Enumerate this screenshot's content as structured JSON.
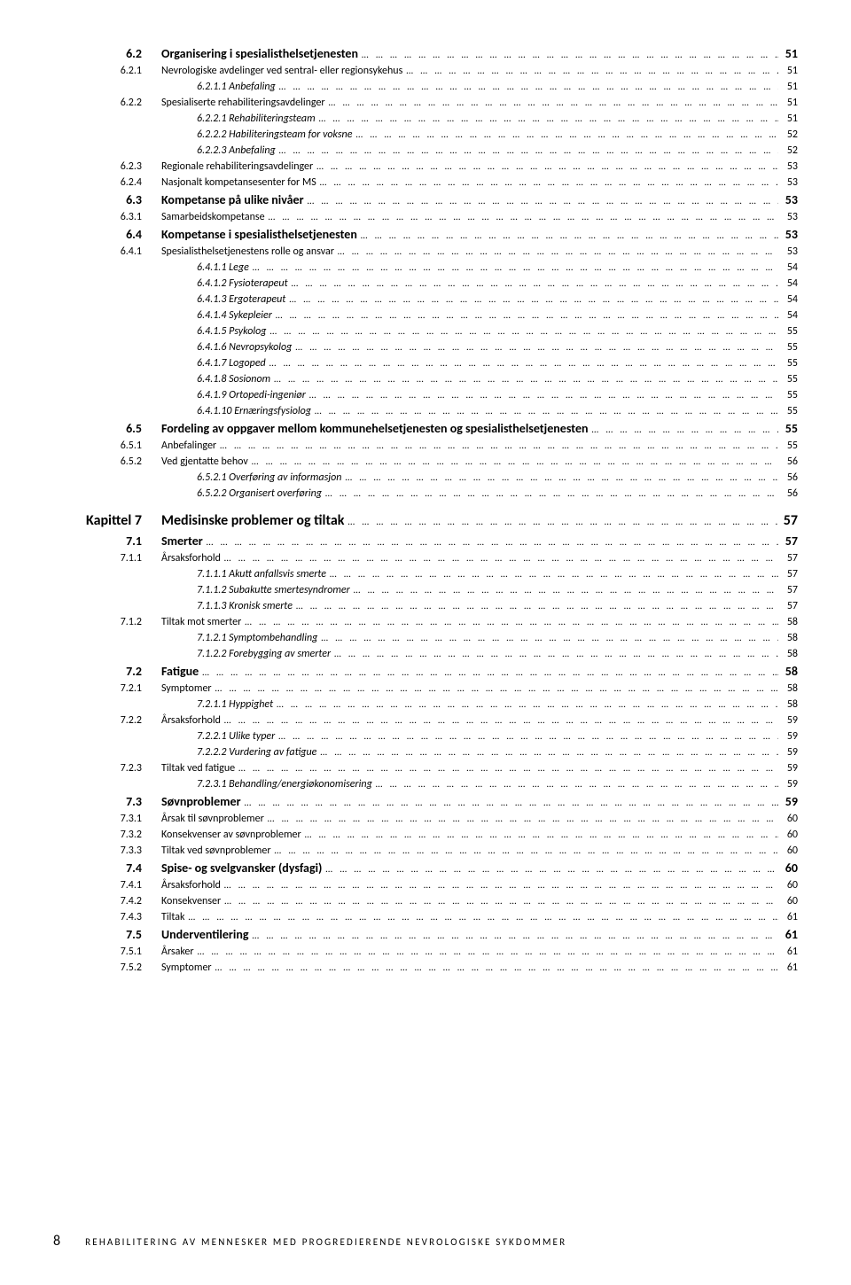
{
  "toc": [
    {
      "lvl": "section",
      "num": "6.2",
      "label": "Organisering i spesialisthelsetjenesten",
      "page": "51",
      "bold": true
    },
    {
      "lvl": "sub",
      "indent": 1,
      "num": "6.2.1",
      "label": "Nevrologiske avdelinger ved sentral- eller regionsykehus",
      "page": "51"
    },
    {
      "lvl": "subsub",
      "indent": 2,
      "num": "",
      "label": "6.2.1.1 Anbefaling",
      "page": "51"
    },
    {
      "lvl": "sub",
      "indent": 1,
      "num": "6.2.2",
      "label": "Spesialiserte rehabiliteringsavdelinger",
      "page": "51"
    },
    {
      "lvl": "subsub",
      "indent": 2,
      "num": "",
      "label": "6.2.2.1 Rehabiliteringsteam",
      "page": "51"
    },
    {
      "lvl": "subsub",
      "indent": 2,
      "num": "",
      "label": "6.2.2.2 Habiliteringsteam for voksne",
      "page": "52"
    },
    {
      "lvl": "subsub",
      "indent": 2,
      "num": "",
      "label": "6.2.2.3 Anbefaling",
      "page": "52"
    },
    {
      "lvl": "sub",
      "indent": 1,
      "num": "6.2.3",
      "label": "Regionale rehabiliteringsavdelinger",
      "page": "53"
    },
    {
      "lvl": "sub",
      "indent": 1,
      "num": "6.2.4",
      "label": "Nasjonalt kompetansesenter for MS",
      "page": "53"
    },
    {
      "lvl": "section",
      "num": "6.3",
      "label": "Kompetanse på ulike nivåer",
      "page": "53",
      "bold": true
    },
    {
      "lvl": "sub",
      "indent": 1,
      "num": "6.3.1",
      "label": "Samarbeidskompetanse",
      "page": "53"
    },
    {
      "lvl": "section",
      "num": "6.4",
      "label": "Kompetanse i spesialisthelsetjenesten",
      "page": "53",
      "bold": true
    },
    {
      "lvl": "sub",
      "indent": 1,
      "num": "6.4.1",
      "label": "Spesialisthelsetjenestens rolle og ansvar",
      "page": "53"
    },
    {
      "lvl": "subsub",
      "indent": 2,
      "num": "",
      "label": "6.4.1.1 Lege",
      "page": "54"
    },
    {
      "lvl": "subsub",
      "indent": 2,
      "num": "",
      "label": "6.4.1.2 Fysioterapeut",
      "page": "54"
    },
    {
      "lvl": "subsub",
      "indent": 2,
      "num": "",
      "label": "6.4.1.3 Ergoterapeut",
      "page": "54"
    },
    {
      "lvl": "subsub",
      "indent": 2,
      "num": "",
      "label": "6.4.1.4 Sykepleier",
      "page": "54"
    },
    {
      "lvl": "subsub",
      "indent": 2,
      "num": "",
      "label": "6.4.1.5 Psykolog",
      "page": "55"
    },
    {
      "lvl": "subsub",
      "indent": 2,
      "num": "",
      "label": "6.4.1.6 Nevropsykolog",
      "page": "55"
    },
    {
      "lvl": "subsub",
      "indent": 2,
      "num": "",
      "label": "6.4.1.7 Logoped",
      "page": "55"
    },
    {
      "lvl": "subsub",
      "indent": 2,
      "num": "",
      "label": "6.4.1.8 Sosionom",
      "page": "55"
    },
    {
      "lvl": "subsub",
      "indent": 2,
      "num": "",
      "label": "6.4.1.9 Ortopedi-ingeniør",
      "page": "55"
    },
    {
      "lvl": "subsub",
      "indent": 2,
      "num": "",
      "label": "6.4.1.10 Ernæringsfysiolog",
      "page": "55"
    },
    {
      "lvl": "section",
      "num": "6.5",
      "label": "Fordeling av oppgaver mellom kommunehelsetjenesten og spesialisthelsetjenesten",
      "page": "55",
      "bold": true
    },
    {
      "lvl": "sub",
      "indent": 1,
      "num": "6.5.1",
      "label": "Anbefalinger",
      "page": "55"
    },
    {
      "lvl": "sub",
      "indent": 1,
      "num": "6.5.2",
      "label": "Ved gjentatte behov",
      "page": "56"
    },
    {
      "lvl": "subsub",
      "indent": 2,
      "num": "",
      "label": "6.5.2.1 Overføring av informasjon",
      "page": "56"
    },
    {
      "lvl": "subsub",
      "indent": 2,
      "num": "",
      "label": "6.5.2.2 Organisert overføring",
      "page": "56"
    },
    {
      "lvl": "gap"
    },
    {
      "lvl": "chapter",
      "num": "Kapittel 7",
      "label": "Medisinske problemer og tiltak",
      "page": "57",
      "bold": true
    },
    {
      "lvl": "section",
      "num": "7.1",
      "label": "Smerter",
      "page": "57",
      "bold": true
    },
    {
      "lvl": "sub",
      "indent": 1,
      "num": "7.1.1",
      "label": "Årsaksforhold",
      "page": "57"
    },
    {
      "lvl": "subsub",
      "indent": 2,
      "num": "",
      "label": "7.1.1.1 Akutt anfallsvis smerte",
      "page": "57"
    },
    {
      "lvl": "subsub",
      "indent": 2,
      "num": "",
      "label": "7.1.1.2 Subakutte smertesyndromer",
      "page": "57"
    },
    {
      "lvl": "subsub",
      "indent": 2,
      "num": "",
      "label": "7.1.1.3 Kronisk smerte",
      "page": "57"
    },
    {
      "lvl": "sub",
      "indent": 1,
      "num": "7.1.2",
      "label": "Tiltak mot smerter",
      "page": "58"
    },
    {
      "lvl": "subsub",
      "indent": 2,
      "num": "",
      "label": "7.1.2.1 Symptombehandling",
      "page": "58"
    },
    {
      "lvl": "subsub",
      "indent": 2,
      "num": "",
      "label": "7.1.2.2 Forebygging av smerter",
      "page": "58"
    },
    {
      "lvl": "section",
      "num": "7.2",
      "label": "Fatigue",
      "page": "58",
      "bold": true
    },
    {
      "lvl": "sub",
      "indent": 1,
      "num": "7.2.1",
      "label": "Symptomer",
      "page": "58"
    },
    {
      "lvl": "subsub",
      "indent": 2,
      "num": "",
      "label": "7.2.1.1 Hyppighet",
      "page": "58"
    },
    {
      "lvl": "sub",
      "indent": 1,
      "num": "7.2.2",
      "label": "Årsaksforhold",
      "page": "59"
    },
    {
      "lvl": "subsub",
      "indent": 2,
      "num": "",
      "label": "7.2.2.1 Ulike typer",
      "page": "59"
    },
    {
      "lvl": "subsub",
      "indent": 2,
      "num": "",
      "label": "7.2.2.2 Vurdering av fatigue",
      "page": "59"
    },
    {
      "lvl": "sub",
      "indent": 1,
      "num": "7.2.3",
      "label": "Tiltak ved fatigue",
      "page": "59"
    },
    {
      "lvl": "subsub",
      "indent": 2,
      "num": "",
      "label": "7.2.3.1 Behandling/energiøkonomisering",
      "page": "59"
    },
    {
      "lvl": "section",
      "num": "7.3",
      "label": "Søvnproblemer",
      "page": "59",
      "bold": true
    },
    {
      "lvl": "sub",
      "indent": 1,
      "num": "7.3.1",
      "label": "Årsak til søvnproblemer",
      "page": "60"
    },
    {
      "lvl": "sub",
      "indent": 1,
      "num": "7.3.2",
      "label": "Konsekvenser av søvnproblemer",
      "page": "60"
    },
    {
      "lvl": "sub",
      "indent": 1,
      "num": "7.3.3",
      "label": "Tiltak ved søvnproblemer",
      "page": "60"
    },
    {
      "lvl": "section",
      "num": "7.4",
      "label": "Spise- og svelgvansker (dysfagi)",
      "page": "60",
      "bold": true
    },
    {
      "lvl": "sub",
      "indent": 1,
      "num": "7.4.1",
      "label": "Årsaksforhold",
      "page": "60"
    },
    {
      "lvl": "sub",
      "indent": 1,
      "num": "7.4.2",
      "label": "Konsekvenser",
      "page": "60"
    },
    {
      "lvl": "sub",
      "indent": 1,
      "num": "7.4.3",
      "label": "Tiltak",
      "page": "61"
    },
    {
      "lvl": "section",
      "num": "7.5",
      "label": "Underventilering",
      "page": "61",
      "bold": true
    },
    {
      "lvl": "sub",
      "indent": 1,
      "num": "7.5.1",
      "label": "Årsaker",
      "page": "61"
    },
    {
      "lvl": "sub",
      "indent": 1,
      "num": "7.5.2",
      "label": "Symptomer",
      "page": "61"
    }
  ],
  "footer": {
    "page_number": "8",
    "running_title": "REHABILITERING AV MENNESKER MED PROGREDIERENDE NEVROLOGISKE SYKDOMMER"
  }
}
